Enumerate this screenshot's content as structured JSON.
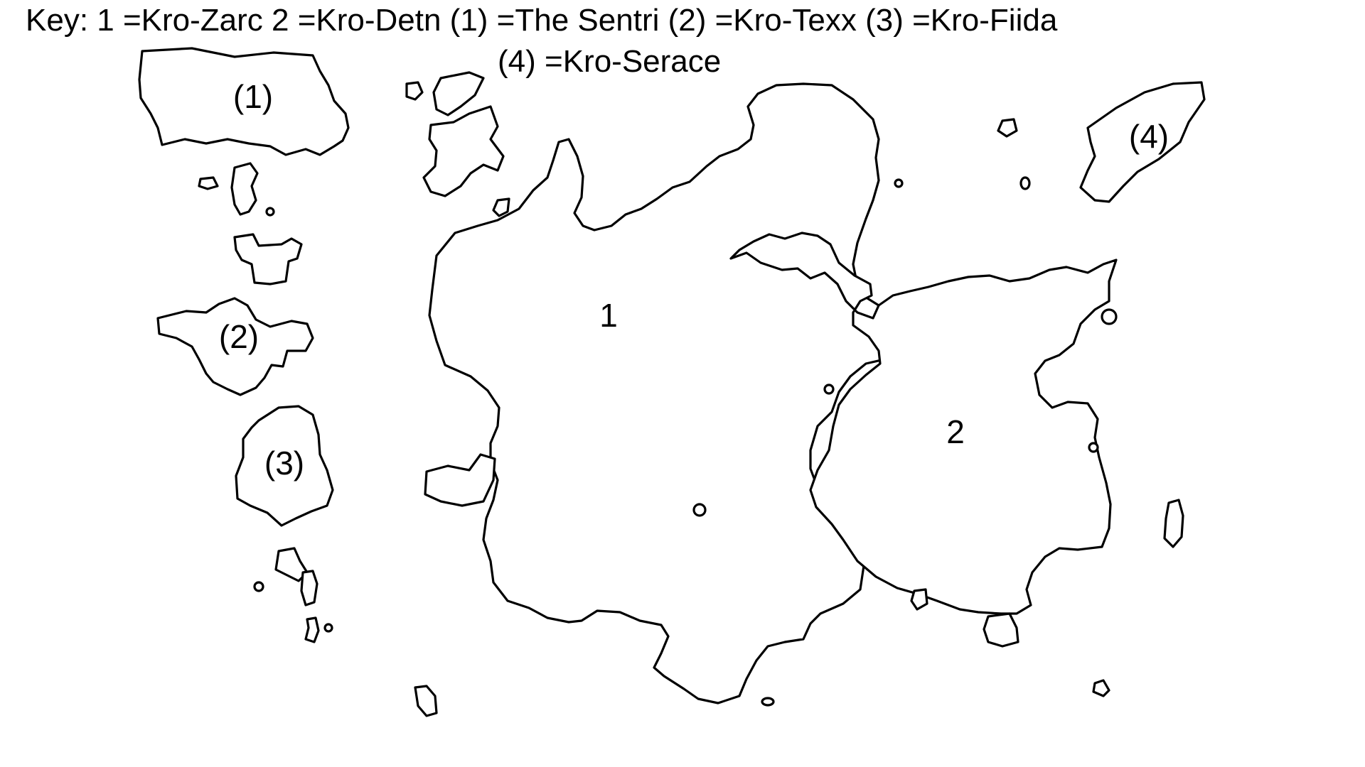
{
  "key": {
    "line1": "Key:  1 =Kro-Zarc 2 =Kro-Detn (1) =The Sentri (2) =Kro-Texx (3) =Kro-Fiida",
    "line2": "(4) =Kro-Serace"
  },
  "labels": {
    "region_1": "1",
    "region_2": "2",
    "island_1": "(1)",
    "island_2": "(2)",
    "island_3": "(3)",
    "island_4": "(4)"
  }
}
